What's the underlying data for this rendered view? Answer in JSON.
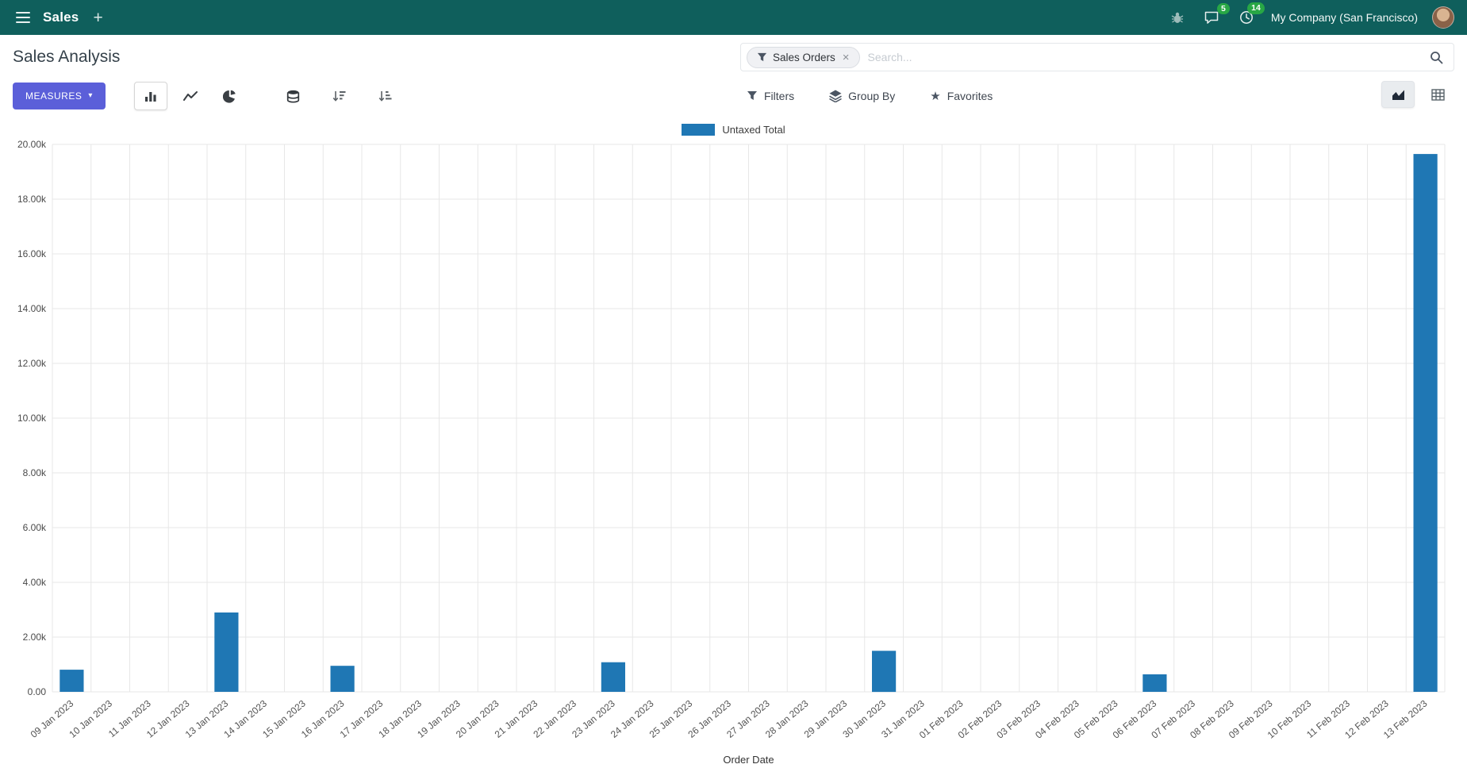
{
  "colors": {
    "navbar_bg": "#0F5F5C",
    "accent": "#5B5FD9",
    "badge": "#28a745",
    "grid": "#e7e7e7",
    "bar": "#1f77b4"
  },
  "navbar": {
    "app_name": "Sales",
    "plus_label": "+",
    "messages_badge": "5",
    "activities_badge": "14",
    "company": "My Company (San Francisco)"
  },
  "page": {
    "title": "Sales Analysis"
  },
  "search": {
    "facet_label": "Sales Orders",
    "remove_glyph": "×",
    "placeholder": "Search..."
  },
  "controls": {
    "measures_label": "MEASURES",
    "filters_label": "Filters",
    "groupby_label": "Group By",
    "favorites_label": "Favorites"
  },
  "icons": {
    "star": "★",
    "caret": "▾"
  },
  "chart_data": {
    "type": "bar",
    "title": "",
    "xlabel": "Order Date",
    "ylabel": "",
    "ylim": [
      0,
      20000
    ],
    "ytick_step": 2000,
    "ytick_labels": [
      "0.00",
      "2.00k",
      "4.00k",
      "6.00k",
      "8.00k",
      "10.00k",
      "12.00k",
      "14.00k",
      "16.00k",
      "18.00k",
      "20.00k"
    ],
    "categories": [
      "09 Jan 2023",
      "10 Jan 2023",
      "11 Jan 2023",
      "12 Jan 2023",
      "13 Jan 2023",
      "14 Jan 2023",
      "15 Jan 2023",
      "16 Jan 2023",
      "17 Jan 2023",
      "18 Jan 2023",
      "19 Jan 2023",
      "20 Jan 2023",
      "21 Jan 2023",
      "22 Jan 2023",
      "23 Jan 2023",
      "24 Jan 2023",
      "25 Jan 2023",
      "26 Jan 2023",
      "27 Jan 2023",
      "28 Jan 2023",
      "29 Jan 2023",
      "30 Jan 2023",
      "31 Jan 2023",
      "01 Feb 2023",
      "02 Feb 2023",
      "03 Feb 2023",
      "04 Feb 2023",
      "05 Feb 2023",
      "06 Feb 2023",
      "07 Feb 2023",
      "08 Feb 2023",
      "09 Feb 2023",
      "10 Feb 2023",
      "11 Feb 2023",
      "12 Feb 2023",
      "13 Feb 2023"
    ],
    "series": [
      {
        "name": "Untaxed Total",
        "color": "#1f77b4",
        "values": [
          810,
          0,
          0,
          0,
          2900,
          0,
          0,
          950,
          0,
          0,
          0,
          0,
          0,
          0,
          1080,
          0,
          0,
          0,
          0,
          0,
          0,
          1500,
          0,
          0,
          0,
          0,
          0,
          0,
          640,
          0,
          0,
          0,
          0,
          0,
          0,
          19650
        ]
      }
    ],
    "legend_position": "top",
    "grid": true
  }
}
